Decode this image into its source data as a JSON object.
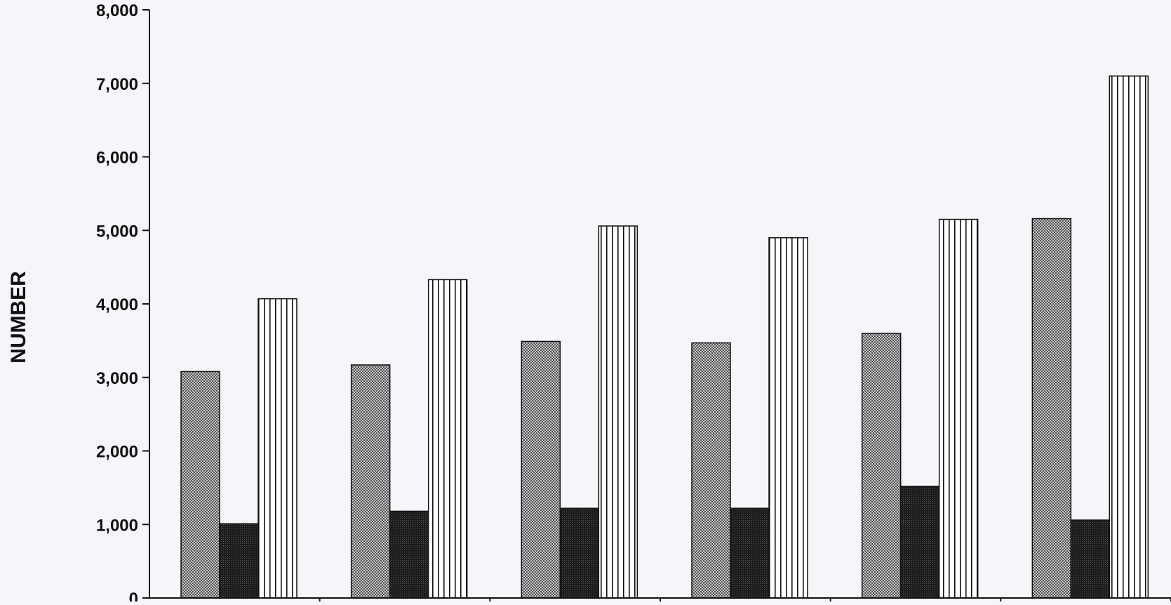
{
  "chart_data": {
    "type": "bar",
    "title": "",
    "xlabel": "",
    "ylabel": "NUMBER",
    "ylim": [
      0,
      8000
    ],
    "yticks": [
      "0",
      "1,000",
      "2,000",
      "3,000",
      "4,000",
      "5,000",
      "6,000",
      "7,000",
      "8,000"
    ],
    "ytick_values": [
      0,
      1000,
      2000,
      3000,
      4000,
      5000,
      6000,
      7000,
      8000
    ],
    "grid": false,
    "legend": "none",
    "categories": [
      "",
      "",
      "",
      "",
      "",
      ""
    ],
    "series": [
      {
        "values": [
          3080,
          3170,
          3490,
          3470,
          3600,
          5160
        ],
        "pattern": "checker",
        "color": "#8a8a8a"
      },
      {
        "values": [
          1010,
          1180,
          1220,
          1220,
          1520,
          1060
        ],
        "pattern": "dense-dark",
        "color": "#2e2e2e"
      },
      {
        "values": [
          4070,
          4330,
          5060,
          4900,
          5150,
          7100
        ],
        "pattern": "vertical-stripes",
        "color": "#ffffff"
      }
    ]
  }
}
